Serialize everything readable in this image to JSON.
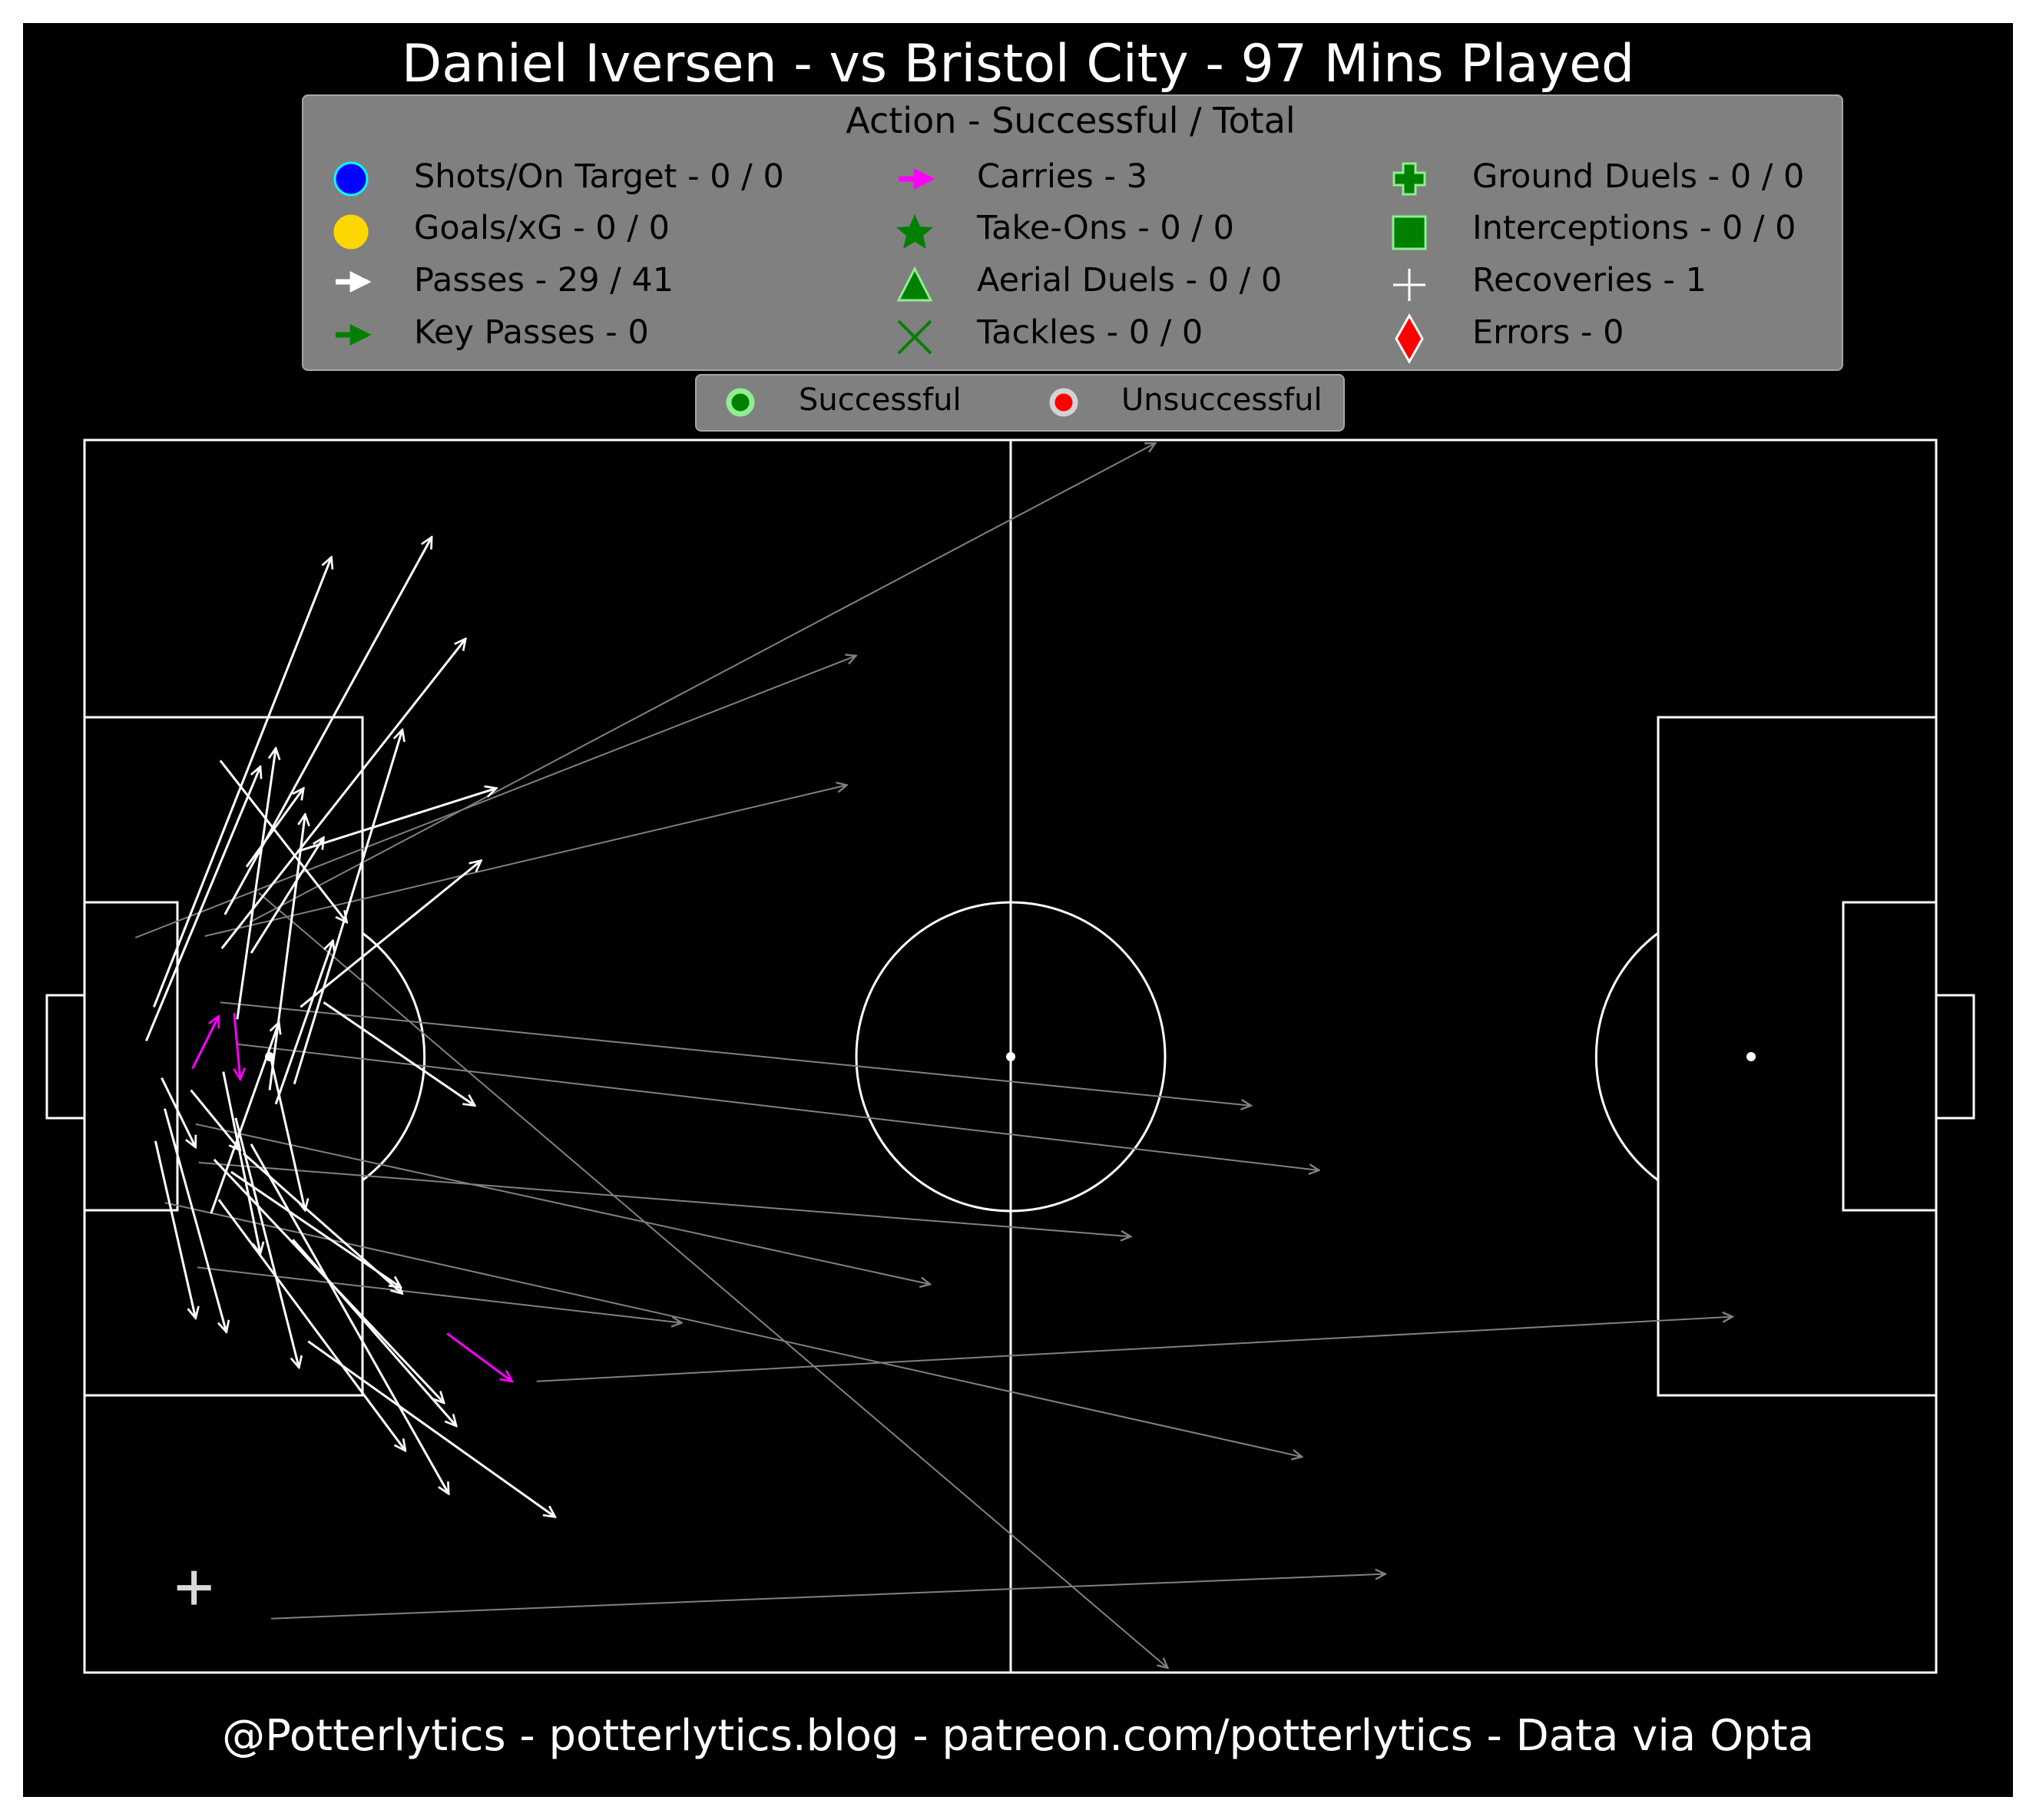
{
  "title": "Daniel Iversen - vs Bristol City - 97 Mins Played",
  "footer": "@Potterlytics - potterlytics.blog - patreon.com/potterlytics - Data via Opta",
  "legend": {
    "title": "Action - Successful / Total",
    "items": [
      {
        "label": "Shots/On Target - 0 / 0",
        "icon": "circle-marker-icon",
        "color": "#0000ff"
      },
      {
        "label": "Goals/xG - 0 / 0",
        "icon": "circle-marker-icon",
        "color": "#ffd700"
      },
      {
        "label": "Passes - 29 / 41",
        "icon": "arrow-icon",
        "color": "#ffffff"
      },
      {
        "label": "Key Passes - 0",
        "icon": "arrow-icon",
        "color": "#008000"
      },
      {
        "label": "Carries - 3",
        "icon": "arrow-icon",
        "color": "#ff00ff"
      },
      {
        "label": "Take-Ons - 0 / 0",
        "icon": "star-icon",
        "color": "#008000"
      },
      {
        "label": "Aerial Duels - 0 / 0",
        "icon": "triangle-icon",
        "color": "#008000"
      },
      {
        "label": "Tackles - 0 / 0",
        "icon": "x-mark-icon",
        "color": "#008000"
      },
      {
        "label": "Ground Duels - 0 / 0",
        "icon": "plus-filled-icon",
        "color": "#008000"
      },
      {
        "label": "Interceptions - 0 / 0",
        "icon": "square-icon",
        "color": "#008000"
      },
      {
        "label": "Recoveries - 1",
        "icon": "plus-icon",
        "color": "#ffffff"
      },
      {
        "label": "Errors - 0",
        "icon": "diamond-icon",
        "color": "#ff0000"
      }
    ]
  },
  "status_legend": [
    {
      "label": "Successful",
      "color": "#008000",
      "edge": "#90ee90"
    },
    {
      "label": "Unsuccessful",
      "color": "#ff0000",
      "edge": "#d3d3d3"
    }
  ],
  "chart_data": {
    "type": "scatter",
    "pitch": {
      "length": 120,
      "width": 80,
      "background": "#000000",
      "lines": "#ffffff"
    },
    "colors": {
      "successful_pass": "#ffffff",
      "unsuccessful_pass": "#808080",
      "carry": "#ff00ff",
      "recovery": "#ffffff"
    },
    "passes_successful": [
      [
        4.5,
        43.2,
        16.0,
        72.4
      ],
      [
        4.0,
        41.0,
        11.4,
        58.8
      ],
      [
        8.9,
        47.0,
        24.7,
        67.1
      ],
      [
        9.1,
        49.2,
        22.5,
        73.7
      ],
      [
        10.5,
        52.3,
        14.2,
        57.4
      ],
      [
        8.8,
        59.2,
        17.0,
        48.7
      ],
      [
        13.6,
        38.2,
        20.6,
        61.2
      ],
      [
        13.8,
        53.3,
        26.7,
        57.4
      ],
      [
        10.8,
        46.7,
        15.5,
        54.2
      ],
      [
        14.0,
        43.2,
        25.7,
        52.7
      ],
      [
        12.4,
        36.9,
        16.1,
        47.5
      ],
      [
        9.9,
        42.4,
        12.4,
        60.0
      ],
      [
        12.0,
        37.8,
        14.3,
        55.7
      ],
      [
        15.5,
        43.5,
        25.3,
        36.8
      ],
      [
        8.2,
        29.8,
        12.6,
        42.2
      ],
      [
        5.2,
        36.6,
        9.2,
        22.1
      ],
      [
        4.6,
        34.5,
        7.2,
        23.0
      ],
      [
        9.8,
        36.0,
        13.9,
        19.8
      ],
      [
        10.3,
        33.7,
        20.6,
        24.6
      ],
      [
        12.0,
        40.2,
        14.3,
        30.0
      ],
      [
        9.0,
        39.0,
        11.4,
        27.2
      ],
      [
        14.5,
        21.5,
        30.5,
        10.1
      ],
      [
        10.8,
        34.3,
        23.6,
        11.6
      ],
      [
        6.9,
        37.8,
        10.1,
        33.9
      ],
      [
        5.0,
        38.6,
        7.2,
        34.1
      ],
      [
        8.4,
        33.3,
        23.3,
        17.5
      ],
      [
        8.7,
        30.7,
        20.8,
        14.4
      ],
      [
        9.5,
        32.5,
        20.5,
        25.0
      ],
      [
        13.5,
        28.1,
        24.1,
        16.0
      ]
    ],
    "passes_unsuccessful": [
      [
        3.3,
        47.7,
        50.0,
        66.0
      ],
      [
        7.8,
        47.8,
        49.4,
        57.6
      ],
      [
        10.7,
        48.7,
        69.4,
        79.8
      ],
      [
        8.8,
        43.5,
        75.6,
        36.8
      ],
      [
        9.8,
        40.8,
        80.0,
        32.6
      ],
      [
        7.4,
        33.1,
        67.8,
        28.3
      ],
      [
        7.3,
        26.3,
        38.7,
        22.7
      ],
      [
        7.2,
        35.6,
        54.8,
        25.2
      ],
      [
        5.2,
        30.5,
        78.9,
        14.0
      ],
      [
        11.3,
        50.6,
        70.2,
        0.3
      ],
      [
        29.3,
        18.9,
        106.8,
        23.1
      ],
      [
        12.1,
        3.5,
        84.3,
        6.4
      ]
    ],
    "carries": [
      [
        7.0,
        39.2,
        8.7,
        42.6
      ],
      [
        9.7,
        42.8,
        10.1,
        38.5
      ],
      [
        23.5,
        22.0,
        27.7,
        18.9
      ]
    ],
    "recoveries": [
      [
        7.1,
        5.5
      ]
    ]
  }
}
